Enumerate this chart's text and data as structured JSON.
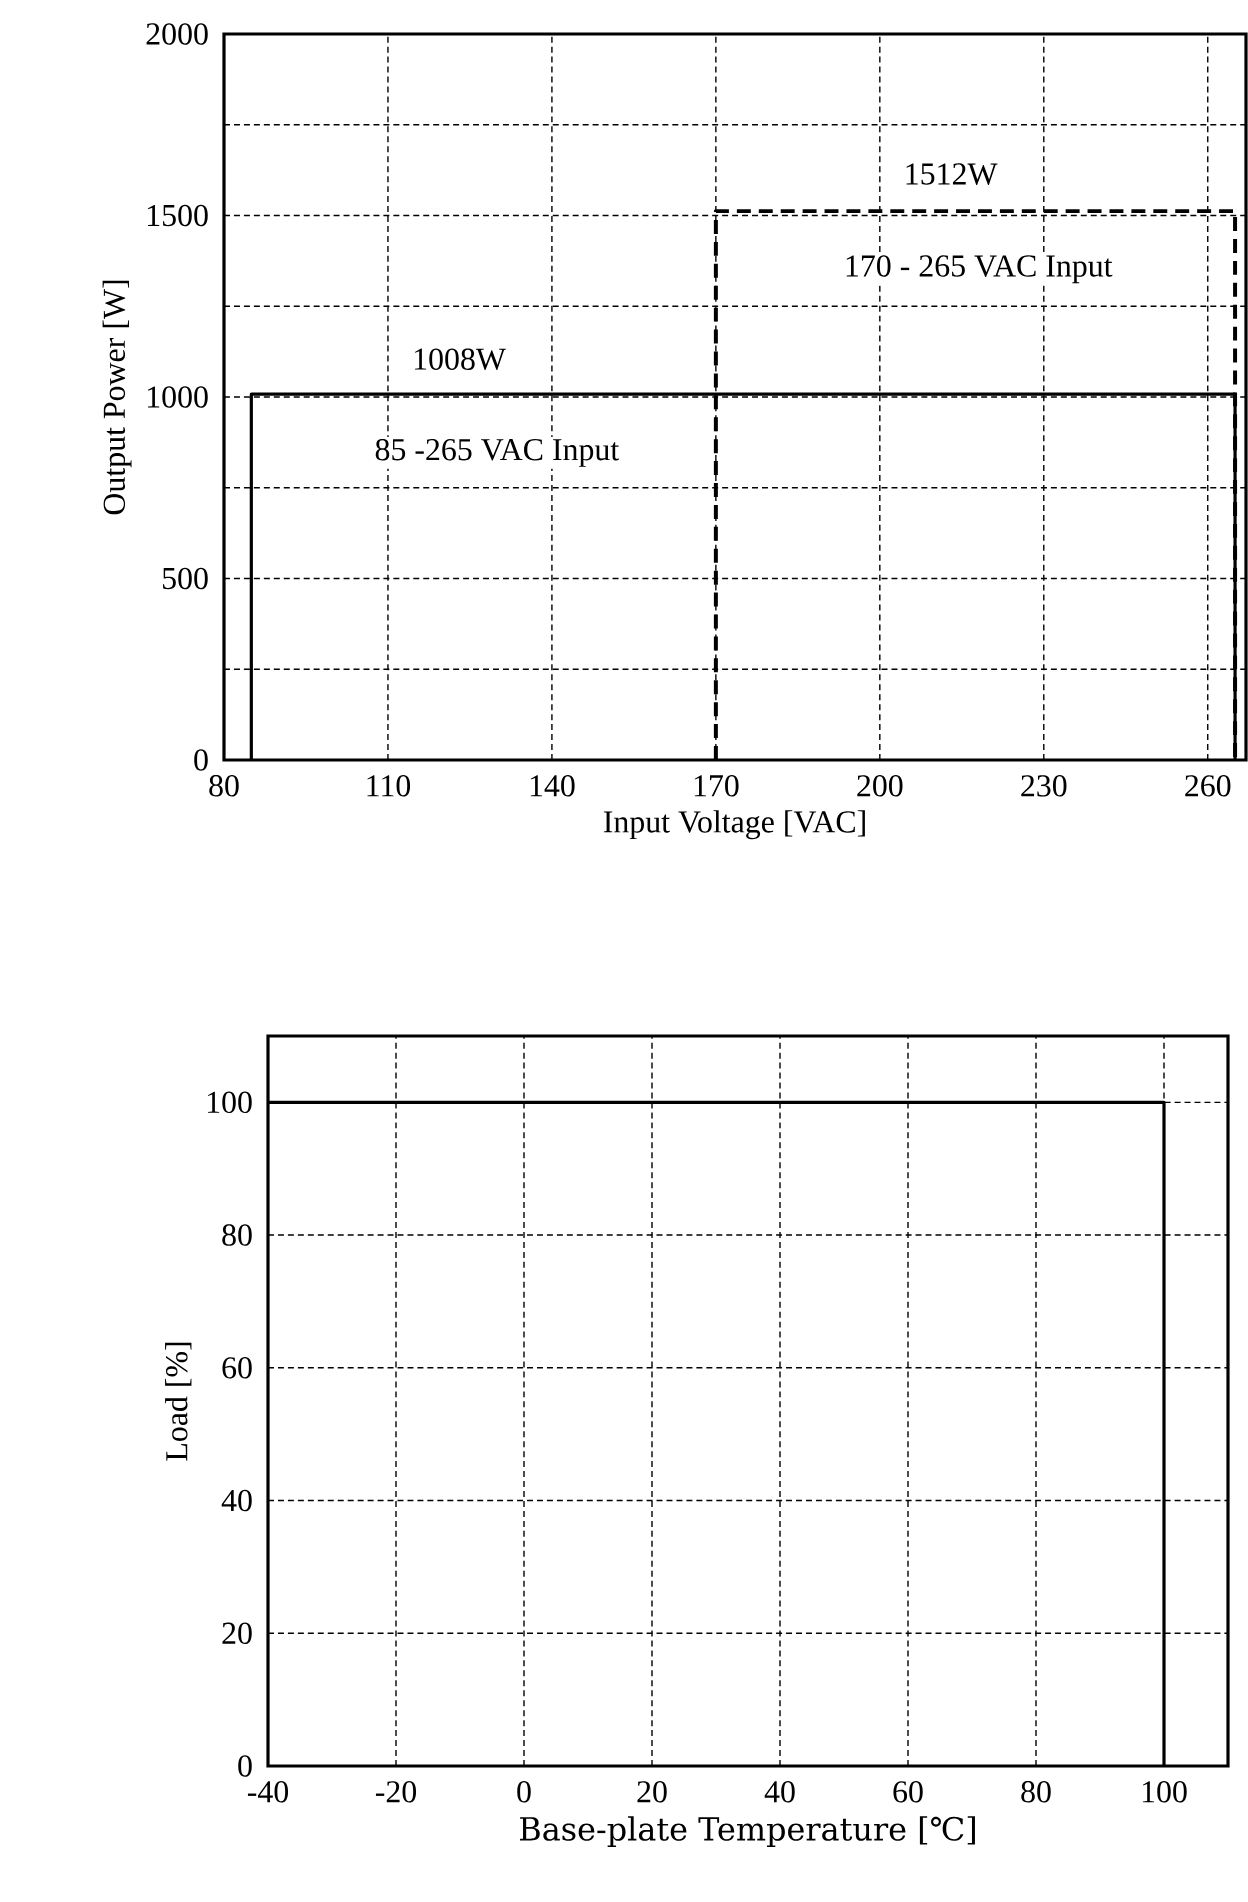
{
  "chart_data": [
    {
      "type": "line",
      "xlabel": "Input Voltage [VAC]",
      "ylabel": "Output Power [W]",
      "xlim": [
        80,
        267
      ],
      "ylim": [
        0,
        2000
      ],
      "xticks": [
        80,
        110,
        140,
        170,
        200,
        230,
        260
      ],
      "yticks": [
        0,
        {
          "value": 250,
          "label": null
        },
        500,
        {
          "value": 750,
          "label": null
        },
        1000,
        {
          "value": 1250,
          "label": null
        },
        1500,
        {
          "value": 1750,
          "label": null
        },
        2000
      ],
      "grid": true,
      "series": [
        {
          "color": "#000000",
          "line_style": "solid",
          "x": [
            85,
            85,
            265,
            265
          ],
          "values": [
            0,
            1008,
            1008,
            0
          ]
        },
        {
          "color": "#000000",
          "line_style": "dashed",
          "x": [
            170,
            170,
            265,
            265
          ],
          "values": [
            0,
            1512,
            1512,
            0
          ]
        }
      ],
      "annotations": [
        "1008W",
        "85 -265 VAC Input",
        "1512W",
        "170 - 265 VAC Input"
      ]
    },
    {
      "type": "line",
      "xlabel": "Base-plate Temperature [℃]",
      "ylabel": "Load [%]",
      "xlim": [
        -40,
        110
      ],
      "ylim": [
        0,
        110
      ],
      "xticks": [
        -40,
        -20,
        0,
        20,
        40,
        60,
        80,
        100
      ],
      "yticks": [
        0,
        20,
        40,
        60,
        80,
        100
      ],
      "grid": true,
      "series": [
        {
          "color": "#000000",
          "line_style": "solid",
          "x": [
            -40,
            100,
            100
          ],
          "values": [
            100,
            100,
            0
          ]
        }
      ]
    }
  ]
}
